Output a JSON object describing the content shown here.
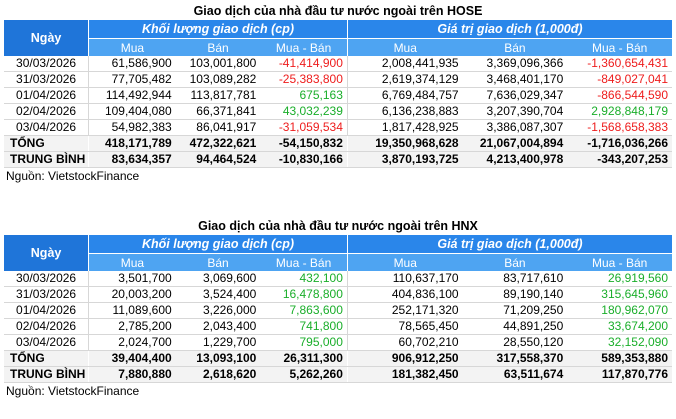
{
  "hose": {
    "title": "Giao dịch của nhà đầu tư nước ngoài trên HOSE",
    "header": {
      "date": "Ngày",
      "volume_group": "Khối lượng giao dịch (cp)",
      "value_group": "Giá trị giao dịch (1,000đ)",
      "buy": "Mua",
      "sell": "Bán",
      "net": "Mua - Bán"
    },
    "rows": [
      {
        "date": "30/03/2026",
        "vol_buy": "61,586,900",
        "vol_sell": "103,001,800",
        "vol_net": "-41,414,900",
        "val_buy": "2,008,441,935",
        "val_sell": "3,369,096,366",
        "val_net": "-1,360,654,431"
      },
      {
        "date": "31/03/2026",
        "vol_buy": "77,705,482",
        "vol_sell": "103,089,282",
        "vol_net": "-25,383,800",
        "val_buy": "2,619,374,129",
        "val_sell": "3,468,401,170",
        "val_net": "-849,027,041"
      },
      {
        "date": "01/04/2026",
        "vol_buy": "114,492,944",
        "vol_sell": "113,817,781",
        "vol_net": "675,163",
        "val_buy": "6,769,484,757",
        "val_sell": "7,636,029,347",
        "val_net": "-866,544,590"
      },
      {
        "date": "02/04/2026",
        "vol_buy": "109,404,080",
        "vol_sell": "66,371,841",
        "vol_net": "43,032,239",
        "val_buy": "6,136,238,883",
        "val_sell": "3,207,390,704",
        "val_net": "2,928,848,179"
      },
      {
        "date": "03/04/2026",
        "vol_buy": "54,982,383",
        "vol_sell": "86,041,917",
        "vol_net": "-31,059,534",
        "val_buy": "1,817,428,925",
        "val_sell": "3,386,087,307",
        "val_net": "-1,568,658,383"
      }
    ],
    "total": {
      "label": "TỔNG",
      "vol_buy": "418,171,789",
      "vol_sell": "472,322,621",
      "vol_net": "-54,150,832",
      "val_buy": "19,350,968,628",
      "val_sell": "21,067,004,894",
      "val_net": "-1,716,036,266"
    },
    "average": {
      "label": "TRUNG BÌNH",
      "vol_buy": "83,634,357",
      "vol_sell": "94,464,524",
      "vol_net": "-10,830,166",
      "val_buy": "3,870,193,725",
      "val_sell": "4,213,400,978",
      "val_net": "-343,207,253"
    },
    "source": "Nguồn: VietstockFinance"
  },
  "hnx": {
    "title": "Giao dịch của nhà đầu tư nước ngoài trên HNX",
    "header": {
      "date": "Ngày",
      "volume_group": "Khối lượng giao dịch (cp)",
      "value_group": "Giá trị giao dịch (1,000đ)",
      "buy": "Mua",
      "sell": "Bán",
      "net": "Mua - Bán"
    },
    "rows": [
      {
        "date": "30/03/2026",
        "vol_buy": "3,501,700",
        "vol_sell": "3,069,600",
        "vol_net": "432,100",
        "val_buy": "110,637,170",
        "val_sell": "83,717,610",
        "val_net": "26,919,560"
      },
      {
        "date": "31/03/2026",
        "vol_buy": "20,003,200",
        "vol_sell": "3,524,400",
        "vol_net": "16,478,800",
        "val_buy": "404,836,100",
        "val_sell": "89,190,140",
        "val_net": "315,645,960"
      },
      {
        "date": "01/04/2026",
        "vol_buy": "11,089,600",
        "vol_sell": "3,226,000",
        "vol_net": "7,863,600",
        "val_buy": "252,171,320",
        "val_sell": "71,209,250",
        "val_net": "180,962,070"
      },
      {
        "date": "02/04/2026",
        "vol_buy": "2,785,200",
        "vol_sell": "2,043,400",
        "vol_net": "741,800",
        "val_buy": "78,565,450",
        "val_sell": "44,891,250",
        "val_net": "33,674,200"
      },
      {
        "date": "03/04/2026",
        "vol_buy": "2,024,700",
        "vol_sell": "1,229,700",
        "vol_net": "795,000",
        "val_buy": "60,702,210",
        "val_sell": "28,550,120",
        "val_net": "32,152,090"
      }
    ],
    "total": {
      "label": "TỔNG",
      "vol_buy": "39,404,400",
      "vol_sell": "13,093,100",
      "vol_net": "26,311,300",
      "val_buy": "906,912,250",
      "val_sell": "317,558,370",
      "val_net": "589,353,880"
    },
    "average": {
      "label": "TRUNG BÌNH",
      "vol_buy": "7,880,880",
      "vol_sell": "2,618,620",
      "vol_net": "5,262,260",
      "val_buy": "181,382,450",
      "val_sell": "63,511,674",
      "val_net": "117,870,776"
    },
    "source": "Nguồn: VietstockFinance"
  },
  "colors": {
    "header_dark": "#1f75d9",
    "header_mid": "#2a86ea",
    "header_light": "#4ea4f2",
    "negative": "#ee1c1c",
    "positive": "#1aae2a"
  }
}
